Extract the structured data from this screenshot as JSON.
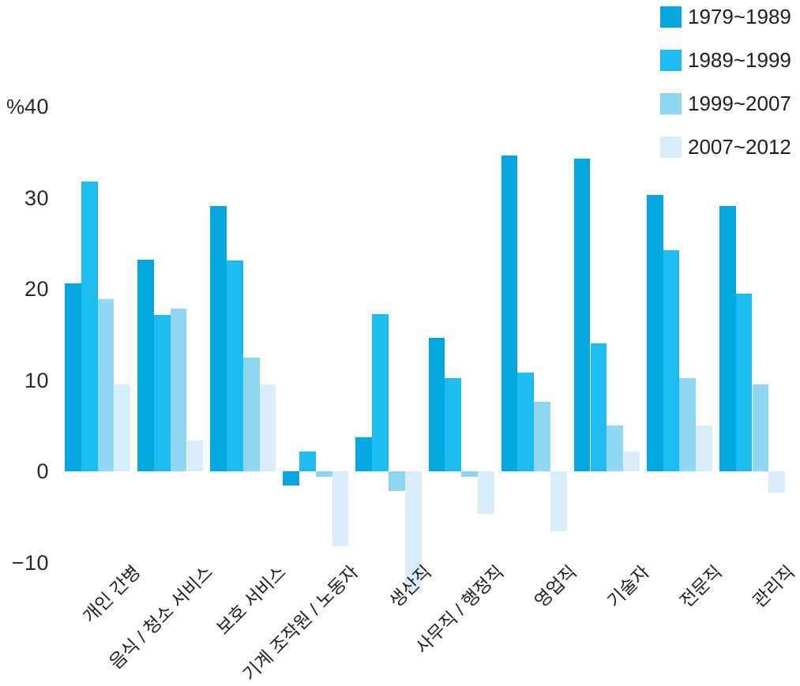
{
  "chart_data": {
    "type": "bar",
    "title": "",
    "unit_label": "%",
    "categories": [
      "개인 간병",
      "음식 / 청소 서비스",
      "보호 서비스",
      "기계 조작원 / 노동자",
      "생산직",
      "사무직 / 행정직",
      "영업직",
      "기술자",
      "전문직",
      "관리직"
    ],
    "series": [
      {
        "name": "1979~1989",
        "color": "#04a7e0",
        "values": [
          20.6,
          23.2,
          29.1,
          -1.6,
          3.7,
          14.6,
          34.6,
          34.3,
          30.3,
          29.1
        ]
      },
      {
        "name": "1989~1999",
        "color": "#1ebdf0",
        "values": [
          31.8,
          17.1,
          23.1,
          2.2,
          17.2,
          10.2,
          10.8,
          14.0,
          24.2,
          19.5
        ]
      },
      {
        "name": "1999~2007",
        "color": "#8fd6f3",
        "values": [
          18.9,
          17.8,
          12.5,
          -0.6,
          -2.2,
          -0.6,
          7.6,
          5.0,
          10.2,
          9.5
        ]
      },
      {
        "name": "2007~2012",
        "color": "#d7edf9",
        "values": [
          9.5,
          3.4,
          9.5,
          -8.2,
          -13.1,
          -4.7,
          -6.6,
          2.2,
          5.0,
          -2.3
        ]
      }
    ],
    "yticks": [
      40,
      30,
      20,
      10,
      0,
      -10
    ],
    "ylim": [
      -15,
      42
    ],
    "grid": false,
    "axis_lines": false,
    "legend_position": "top-right",
    "xlabel": "",
    "ylabel": "%"
  }
}
